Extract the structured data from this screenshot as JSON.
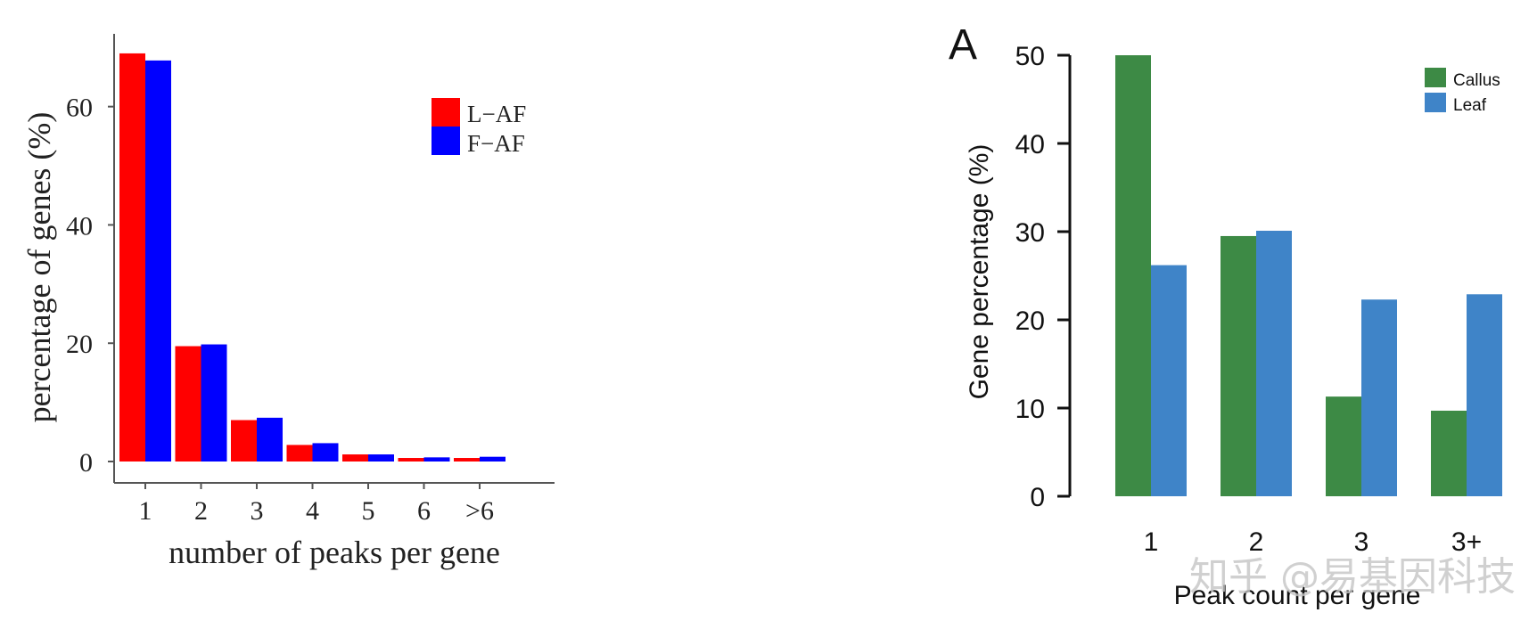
{
  "chart_data": [
    {
      "type": "bar",
      "title": "",
      "xlabel": "number of peaks per gene",
      "ylabel": "percentage of genes (%)",
      "categories": [
        "1",
        "2",
        "3",
        "4",
        "5",
        "6",
        ">6"
      ],
      "series": [
        {
          "name": "L−AF",
          "color": "#ff0000",
          "values": [
            69.0,
            19.5,
            7.0,
            2.8,
            1.2,
            0.6,
            0.6
          ]
        },
        {
          "name": "F−AF",
          "color": "#0000ff",
          "values": [
            67.8,
            19.8,
            7.4,
            3.1,
            1.2,
            0.7,
            0.8
          ]
        }
      ],
      "yticks": [
        0,
        20,
        40,
        60
      ],
      "ylim": [
        0,
        72
      ],
      "legend": "top-right",
      "grid": false
    },
    {
      "type": "bar",
      "panel_label": "A",
      "title": "",
      "xlabel": "Peak count per gene",
      "ylabel": "Gene percentage (%)",
      "categories": [
        "1",
        "2",
        "3",
        "3+"
      ],
      "series": [
        {
          "name": "Callus",
          "color": "#3d8a45",
          "values": [
            50.0,
            29.5,
            11.3,
            9.7
          ]
        },
        {
          "name": "Leaf",
          "color": "#3f84c8",
          "values": [
            26.2,
            30.1,
            22.3,
            22.9
          ]
        }
      ],
      "yticks": [
        0,
        10,
        20,
        30,
        40,
        50
      ],
      "ylim": [
        0,
        50
      ],
      "legend": "top-right",
      "grid": false
    }
  ],
  "watermark": "知乎 @易基因科技"
}
